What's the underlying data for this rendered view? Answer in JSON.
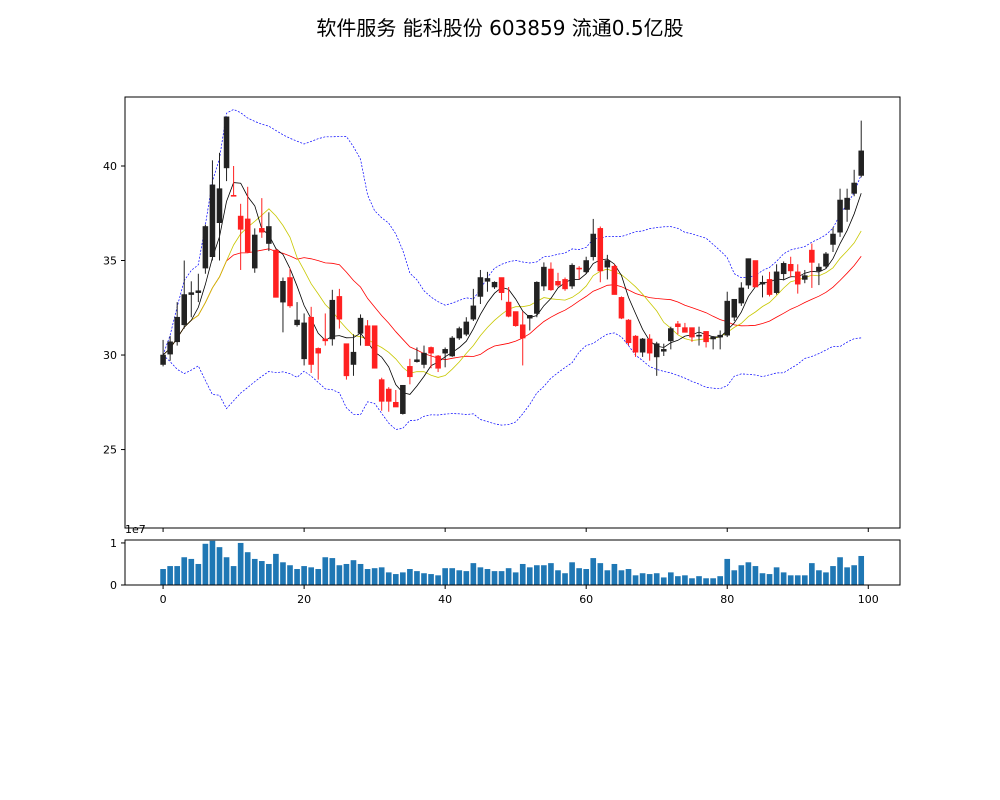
{
  "title": "软件服务 能科股份 603859 流通0.5亿股",
  "chart_data": {
    "type": "candlestick",
    "title": "软件服务 能科股份 603859 流通0.5亿股",
    "x": "index 0-99",
    "xlim": [
      -5.4,
      104.5
    ],
    "xticks": [
      0,
      20,
      40,
      60,
      80,
      100
    ],
    "ylim": [
      20.85,
      43.65
    ],
    "yticks": [
      25,
      30,
      35,
      40
    ],
    "grid": false,
    "colors": {
      "up": "#222222",
      "down": "#ff2020",
      "ma5": "#000000",
      "ma10": "#c8c800",
      "ma20": "#ff0000",
      "boll": "#0000ff",
      "volume": "#1f77b4"
    },
    "indicators": [
      "MA5",
      "MA10",
      "MA20",
      "Bollinger(20,2)"
    ],
    "ohlc": [
      [
        29.5,
        30.8,
        29.4,
        30.0
      ],
      [
        30.05,
        31.0,
        29.7,
        30.7
      ],
      [
        30.7,
        32.8,
        30.5,
        32.0
      ],
      [
        31.6,
        35.0,
        31.4,
        33.2
      ],
      [
        33.2,
        33.9,
        32.0,
        33.3
      ],
      [
        33.3,
        34.3,
        32.8,
        33.4
      ],
      [
        34.6,
        36.9,
        34.3,
        36.8
      ],
      [
        35.2,
        40.3,
        35.0,
        39.0
      ],
      [
        37.0,
        40.7,
        35.0,
        38.8
      ],
      [
        39.9,
        42.6,
        39.2,
        42.6
      ],
      [
        38.45,
        40.0,
        38.4,
        38.4
      ],
      [
        37.35,
        38.0,
        34.5,
        36.65
      ],
      [
        37.2,
        38.9,
        35.4,
        35.45
      ],
      [
        34.6,
        36.7,
        34.35,
        36.35
      ],
      [
        36.7,
        38.3,
        36.2,
        36.5
      ],
      [
        35.9,
        37.55,
        35.5,
        36.8
      ],
      [
        35.55,
        35.6,
        33.05,
        33.05
      ],
      [
        32.8,
        34.1,
        31.2,
        33.9
      ],
      [
        34.1,
        34.6,
        32.5,
        32.6
      ],
      [
        31.6,
        32.8,
        31.5,
        31.85
      ],
      [
        29.8,
        32.2,
        29.45,
        31.7
      ],
      [
        32.0,
        32.55,
        29.05,
        29.5
      ],
      [
        30.35,
        30.4,
        28.7,
        30.1
      ],
      [
        30.85,
        32.2,
        30.5,
        30.75
      ],
      [
        30.85,
        33.45,
        30.5,
        32.9
      ],
      [
        33.1,
        33.5,
        31.4,
        31.9
      ],
      [
        30.6,
        30.6,
        28.7,
        28.9
      ],
      [
        29.5,
        31.1,
        28.9,
        30.15
      ],
      [
        31.15,
        32.15,
        30.5,
        31.95
      ],
      [
        31.55,
        31.85,
        30.5,
        30.5
      ],
      [
        31.55,
        31.55,
        29.3,
        29.3
      ],
      [
        28.7,
        28.8,
        27.05,
        27.55
      ],
      [
        28.2,
        28.3,
        27.0,
        27.55
      ],
      [
        27.5,
        28.15,
        27.25,
        27.25
      ],
      [
        26.9,
        28.4,
        26.85,
        28.4
      ],
      [
        29.4,
        29.8,
        28.45,
        28.85
      ],
      [
        29.65,
        30.4,
        29.6,
        29.75
      ],
      [
        29.5,
        30.5,
        29.3,
        30.1
      ],
      [
        30.4,
        30.45,
        29.3,
        30.1
      ],
      [
        29.95,
        30.0,
        29.1,
        29.3
      ],
      [
        30.1,
        30.4,
        29.35,
        30.3
      ],
      [
        29.95,
        31.0,
        29.9,
        30.9
      ],
      [
        30.9,
        31.5,
        30.8,
        31.4
      ],
      [
        31.1,
        32.0,
        31.0,
        31.75
      ],
      [
        31.9,
        33.5,
        31.8,
        32.6
      ],
      [
        33.1,
        34.5,
        32.7,
        34.1
      ],
      [
        33.9,
        34.4,
        33.35,
        34.05
      ],
      [
        33.6,
        33.9,
        33.5,
        33.85
      ],
      [
        34.1,
        34.1,
        32.9,
        33.3
      ],
      [
        32.8,
        33.6,
        32.0,
        32.05
      ],
      [
        32.3,
        32.3,
        31.5,
        31.55
      ],
      [
        31.6,
        32.3,
        29.45,
        30.9
      ],
      [
        31.95,
        32.1,
        31.3,
        32.1
      ],
      [
        32.2,
        33.9,
        32.0,
        33.85
      ],
      [
        33.65,
        34.9,
        33.4,
        34.65
      ],
      [
        34.55,
        34.9,
        33.4,
        33.45
      ],
      [
        33.9,
        34.35,
        33.6,
        33.7
      ],
      [
        34.0,
        34.1,
        33.4,
        33.5
      ],
      [
        33.65,
        34.85,
        33.5,
        34.75
      ],
      [
        34.6,
        34.7,
        34.0,
        34.55
      ],
      [
        34.4,
        35.2,
        34.3,
        35.0
      ],
      [
        35.2,
        37.2,
        35.0,
        36.4
      ],
      [
        36.7,
        36.8,
        33.85,
        34.45
      ],
      [
        34.65,
        35.3,
        34.0,
        35.0
      ],
      [
        34.7,
        34.8,
        33.2,
        33.2
      ],
      [
        33.05,
        33.1,
        31.9,
        31.95
      ],
      [
        31.85,
        31.9,
        30.5,
        30.65
      ],
      [
        31.0,
        31.05,
        29.9,
        30.15
      ],
      [
        30.15,
        30.9,
        29.9,
        30.85
      ],
      [
        30.85,
        31.1,
        29.7,
        30.1
      ],
      [
        29.9,
        30.7,
        28.9,
        30.6
      ],
      [
        30.2,
        30.6,
        29.95,
        30.3
      ],
      [
        30.75,
        31.5,
        30.3,
        31.4
      ],
      [
        31.65,
        31.8,
        31.1,
        31.5
      ],
      [
        31.45,
        31.7,
        31.2,
        31.2
      ],
      [
        31.45,
        31.45,
        30.7,
        30.95
      ],
      [
        31.0,
        31.5,
        30.5,
        31.05
      ],
      [
        31.25,
        31.25,
        30.4,
        30.7
      ],
      [
        30.85,
        31.0,
        30.3,
        30.95
      ],
      [
        30.95,
        31.3,
        30.3,
        31.05
      ],
      [
        31.05,
        33.35,
        30.95,
        32.85
      ],
      [
        32.0,
        32.95,
        31.8,
        32.95
      ],
      [
        32.75,
        33.85,
        32.6,
        33.55
      ],
      [
        33.7,
        35.1,
        33.5,
        35.1
      ],
      [
        35.0,
        35.0,
        33.6,
        33.6
      ],
      [
        33.75,
        34.2,
        33.05,
        33.85
      ],
      [
        34.0,
        34.4,
        33.1,
        33.2
      ],
      [
        33.3,
        34.8,
        33.2,
        34.4
      ],
      [
        34.3,
        34.95,
        33.95,
        34.85
      ],
      [
        34.8,
        35.2,
        34.1,
        34.45
      ],
      [
        34.4,
        34.8,
        33.25,
        33.75
      ],
      [
        34.0,
        34.5,
        33.8,
        34.2
      ],
      [
        35.55,
        35.9,
        33.55,
        34.9
      ],
      [
        34.45,
        34.85,
        33.7,
        34.65
      ],
      [
        34.7,
        35.45,
        34.6,
        35.35
      ],
      [
        35.85,
        36.75,
        35.45,
        36.4
      ],
      [
        36.5,
        38.8,
        36.25,
        38.2
      ],
      [
        37.7,
        38.8,
        37.05,
        38.3
      ],
      [
        38.55,
        39.8,
        38.4,
        39.1
      ],
      [
        39.5,
        42.4,
        39.4,
        40.8
      ]
    ],
    "volume": {
      "ylim": [
        0,
        10700000
      ],
      "yticks": [
        0,
        1
      ],
      "offset_label": "1e7",
      "values": [
        3800000,
        4500000,
        4500000,
        6600000,
        6200000,
        5000000,
        9800000,
        10500000,
        9000000,
        6600000,
        4500000,
        10000000,
        7800000,
        6200000,
        5700000,
        5000000,
        7400000,
        5400000,
        4700000,
        3800000,
        4500000,
        4200000,
        3800000,
        6600000,
        6400000,
        4700000,
        5000000,
        5900000,
        5000000,
        3800000,
        4000000,
        4200000,
        3000000,
        2600000,
        3000000,
        3800000,
        3300000,
        2800000,
        2600000,
        2300000,
        4000000,
        4000000,
        3500000,
        3300000,
        5200000,
        4200000,
        3800000,
        3300000,
        3300000,
        4000000,
        3000000,
        5000000,
        4200000,
        4700000,
        4700000,
        5200000,
        3500000,
        2800000,
        5400000,
        4000000,
        3800000,
        6400000,
        5200000,
        3500000,
        5000000,
        3500000,
        3800000,
        2300000,
        2800000,
        2600000,
        2800000,
        1800000,
        3000000,
        2100000,
        2300000,
        1600000,
        2100000,
        1600000,
        1600000,
        2100000,
        6200000,
        3500000,
        4700000,
        5400000,
        4500000,
        2800000,
        2600000,
        4200000,
        3000000,
        2300000,
        2300000,
        2300000,
        5200000,
        3500000,
        3000000,
        4500000,
        6600000,
        4200000,
        4700000,
        6900000
      ]
    }
  }
}
